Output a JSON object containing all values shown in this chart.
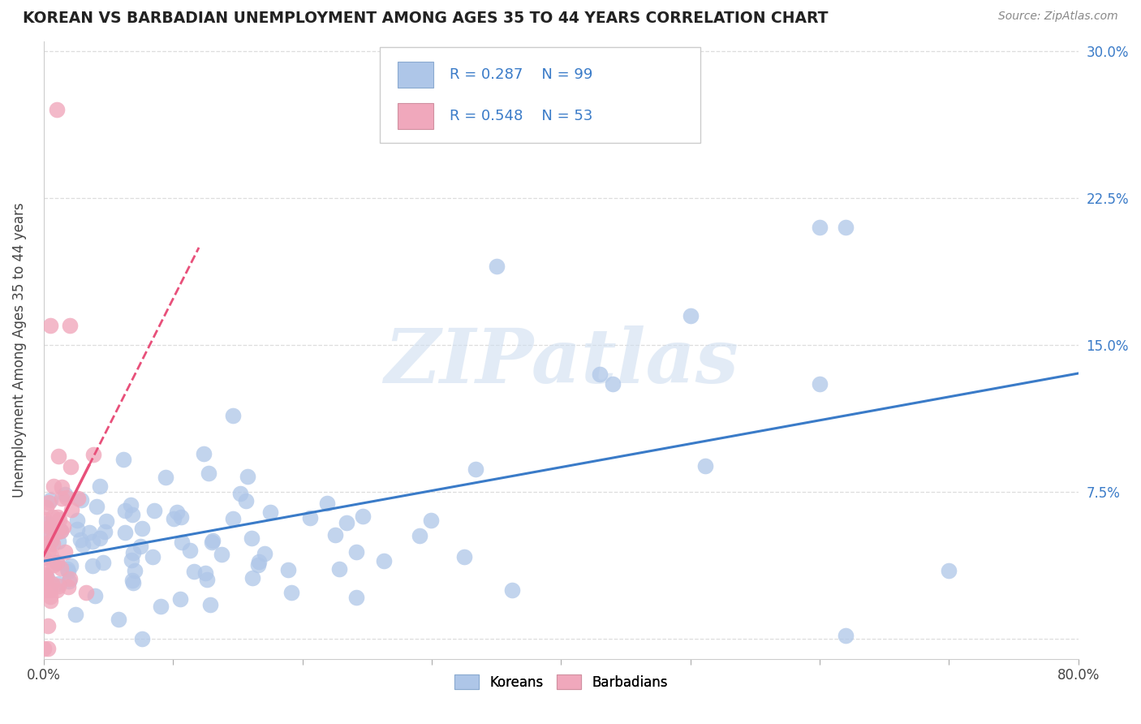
{
  "title": "KOREAN VS BARBADIAN UNEMPLOYMENT AMONG AGES 35 TO 44 YEARS CORRELATION CHART",
  "source": "Source: ZipAtlas.com",
  "ylabel": "Unemployment Among Ages 35 to 44 years",
  "xlim": [
    0.0,
    0.8
  ],
  "ylim": [
    -0.01,
    0.305
  ],
  "xticks": [
    0.0,
    0.1,
    0.2,
    0.3,
    0.4,
    0.5,
    0.6,
    0.7,
    0.8
  ],
  "yticks": [
    0.0,
    0.075,
    0.15,
    0.225,
    0.3
  ],
  "ytick_labels": [
    "",
    "7.5%",
    "15.0%",
    "22.5%",
    "30.0%"
  ],
  "xtick_labels": [
    "0.0%",
    "",
    "",
    "",
    "",
    "",
    "",
    "",
    "80.0%"
  ],
  "korean_color": "#aec6e8",
  "barbadian_color": "#f0a8bc",
  "korean_line_color": "#3a7bc8",
  "barbadian_line_color": "#e8507a",
  "R_korean": 0.287,
  "N_korean": 99,
  "R_barbadian": 0.548,
  "N_barbadian": 53,
  "watermark": "ZIPatlas",
  "legend_label_1": "Koreans",
  "legend_label_2": "Barbadians",
  "background_color": "#ffffff"
}
